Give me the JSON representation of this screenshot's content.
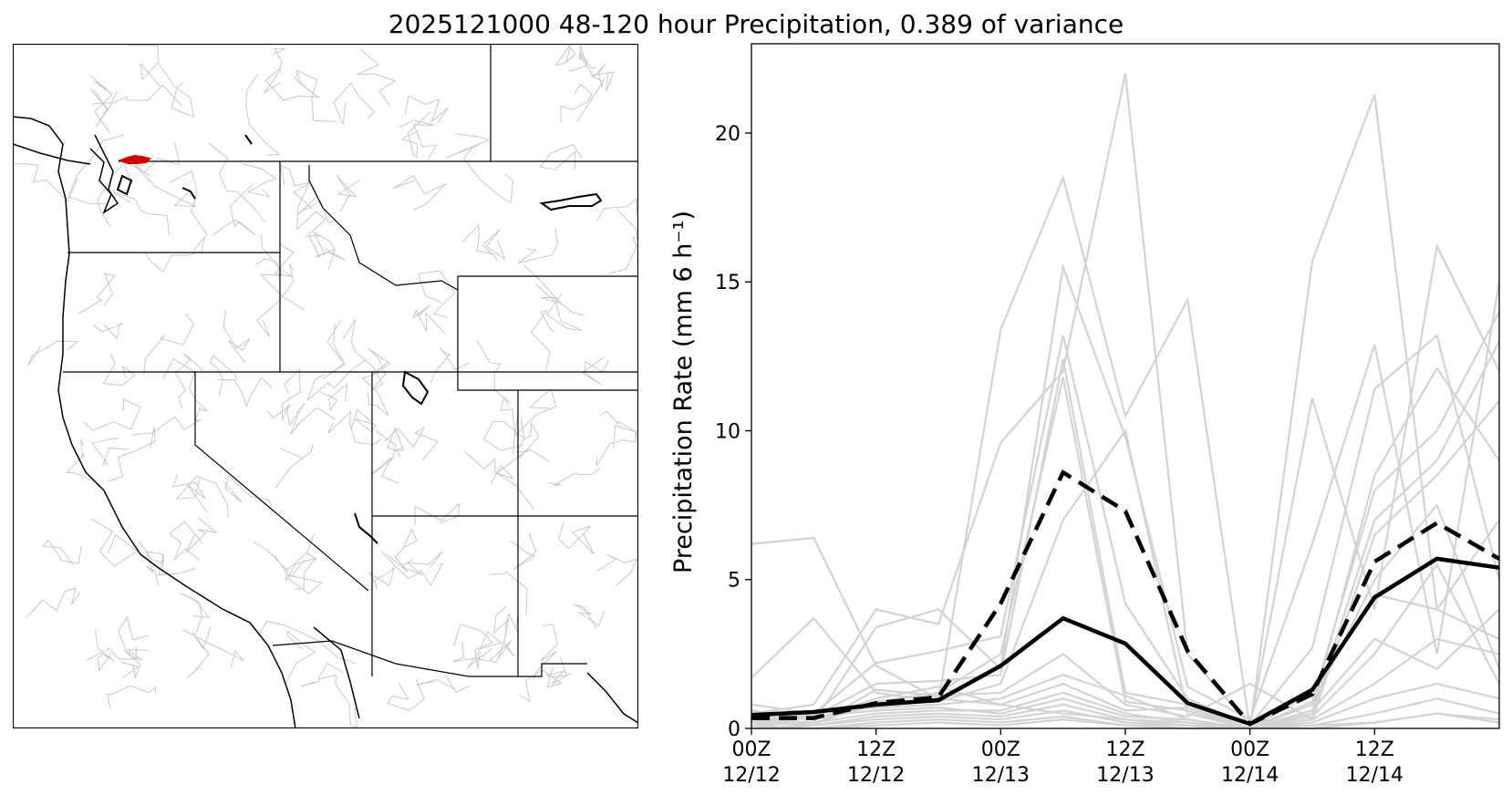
{
  "title": "2025121000 48-120 hour Precipitation, 0.389 of variance",
  "map": {
    "highlight_color": "#cc0000",
    "basin_line_color": "#c8c8c8",
    "border_color": "#000000"
  },
  "chart_data": {
    "type": "line",
    "ylabel": "Precipitation Rate (mm 6 h⁻¹)",
    "ylim": [
      0,
      23
    ],
    "yticks": [
      0,
      5,
      10,
      15,
      20
    ],
    "x": [
      0,
      6,
      12,
      18,
      24,
      30,
      36,
      42,
      48,
      54,
      60,
      66,
      72
    ],
    "xlim": [
      0,
      72
    ],
    "xticks": [
      {
        "x": 0,
        "line1": "00Z",
        "line2": "12/12"
      },
      {
        "x": 12,
        "line1": "12Z",
        "line2": "12/12"
      },
      {
        "x": 24,
        "line1": "00Z",
        "line2": "12/13"
      },
      {
        "x": 36,
        "line1": "12Z",
        "line2": "12/13"
      },
      {
        "x": 48,
        "line1": "00Z",
        "line2": "12/14"
      },
      {
        "x": 60,
        "line1": "12Z",
        "line2": "12/14"
      }
    ],
    "ensemble_color": "#d3d3d3",
    "ensemble": [
      [
        6.2,
        6.4,
        2.1,
        1.0,
        0.8,
        0.5,
        0.3,
        0.1,
        0.0,
        0.1,
        0.2,
        0.5,
        0.3
      ],
      [
        1.7,
        3.7,
        1.2,
        0.9,
        13.4,
        18.5,
        10.5,
        14.4,
        0.0,
        15.7,
        21.3,
        4.0,
        3.0
      ],
      [
        0.5,
        0.8,
        4.0,
        3.5,
        9.6,
        12.0,
        22.0,
        2.5,
        0.1,
        11.1,
        4.0,
        16.2,
        12.0
      ],
      [
        0.3,
        0.2,
        3.4,
        4.0,
        2.0,
        15.5,
        9.8,
        1.4,
        0.3,
        6.2,
        12.9,
        2.5,
        15.0
      ],
      [
        0.8,
        0.5,
        2.2,
        2.6,
        3.1,
        13.2,
        4.2,
        1.0,
        0.1,
        2.7,
        11.4,
        13.2,
        5.0
      ],
      [
        0.2,
        0.4,
        1.5,
        1.6,
        1.8,
        12.4,
        1.2,
        0.8,
        0.0,
        0.6,
        8.5,
        12.1,
        9.0
      ],
      [
        0.4,
        0.3,
        0.9,
        1.2,
        2.5,
        11.8,
        0.9,
        0.6,
        0.0,
        0.9,
        8.0,
        10.0,
        14.0
      ],
      [
        0.1,
        0.2,
        0.8,
        0.9,
        1.5,
        7.0,
        10.0,
        0.5,
        0.0,
        0.5,
        7.0,
        9.0,
        13.0
      ],
      [
        0.3,
        0.1,
        1.3,
        1.1,
        1.2,
        2.5,
        0.8,
        0.4,
        1.5,
        0.3,
        6.5,
        8.5,
        11.0
      ],
      [
        0.2,
        0.5,
        0.7,
        0.8,
        1.0,
        1.8,
        1.1,
        0.3,
        0.0,
        0.8,
        5.0,
        7.5,
        2.0
      ],
      [
        0.6,
        0.3,
        1.0,
        1.4,
        0.8,
        1.5,
        0.6,
        0.7,
        0.0,
        1.2,
        4.5,
        4.0,
        7.0
      ],
      [
        0.1,
        0.2,
        0.5,
        0.6,
        0.6,
        1.2,
        0.5,
        0.2,
        0.0,
        0.6,
        3.0,
        2.0,
        4.0
      ],
      [
        0.3,
        0.4,
        0.6,
        0.7,
        0.5,
        1.0,
        0.4,
        0.3,
        0.0,
        0.4,
        2.5,
        5.5,
        1.5
      ],
      [
        0.2,
        0.1,
        0.4,
        0.5,
        0.4,
        0.8,
        0.3,
        0.2,
        0.0,
        0.3,
        1.5,
        3.0,
        2.5
      ],
      [
        0.0,
        0.1,
        0.3,
        0.4,
        0.3,
        0.6,
        0.2,
        0.1,
        0.0,
        0.2,
        1.0,
        1.5,
        1.0
      ],
      [
        0.1,
        0.0,
        0.2,
        0.3,
        0.2,
        0.4,
        0.1,
        0.1,
        0.0,
        0.1,
        0.5,
        1.0,
        0.5
      ],
      [
        0.0,
        0.0,
        0.1,
        0.2,
        0.1,
        0.3,
        0.1,
        0.0,
        0.0,
        0.0,
        0.2,
        0.5,
        0.2
      ]
    ],
    "series": [
      {
        "values": [
          0.35,
          0.35,
          0.85,
          1.05,
          4.2,
          8.6,
          7.3,
          2.6,
          0.15,
          1.15,
          5.6,
          6.9,
          5.7
        ],
        "style": "dashed",
        "color": "#000000"
      },
      {
        "values": [
          0.45,
          0.55,
          0.8,
          0.95,
          2.1,
          3.7,
          2.85,
          0.85,
          0.15,
          1.3,
          4.4,
          5.7,
          5.4
        ],
        "style": "solid",
        "color": "#000000"
      }
    ]
  }
}
